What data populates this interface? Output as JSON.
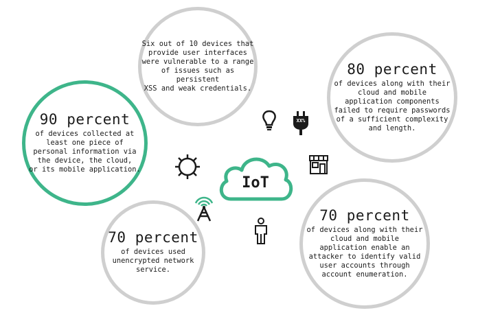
{
  "colors": {
    "accent": "#3eb58a",
    "ring": "#cfcfcf",
    "ink": "#1a1a1a"
  },
  "hub": {
    "label": "IoT",
    "icon": "cloud-icon"
  },
  "stats": {
    "top": {
      "lines": [
        "Six out of 10 devices that",
        "provide user interfaces",
        "were vulnerable to a range",
        "of issues such as persistent",
        "XSS and weak credentials."
      ]
    },
    "left": {
      "headline": "90 percent",
      "lines": [
        "of devices collected at",
        "least one piece of",
        "personal information via",
        "the device, the cloud,",
        "or its mobile application."
      ]
    },
    "right": {
      "headline": "80 percent",
      "lines": [
        "of devices along with their",
        "cloud and mobile",
        "application components",
        "failed to require passwords",
        "of a sufficient complexity",
        "and length."
      ]
    },
    "bottom_left": {
      "headline": "70 percent",
      "lines": [
        "of devices used",
        "unencrypted network",
        "service."
      ]
    },
    "bottom_right": {
      "headline": "70 percent",
      "lines": [
        "of devices along with their",
        "cloud and mobile",
        "application enable an",
        "attacker to identify valid",
        "user accounts through",
        "account enumeration."
      ]
    }
  },
  "icons": {
    "bulb": "lightbulb-icon",
    "plug": "plug-icon",
    "plug_label": "XX%",
    "store": "storefront-icon",
    "gear": "gear-icon",
    "antenna": "antenna-icon",
    "person": "person-icon"
  }
}
